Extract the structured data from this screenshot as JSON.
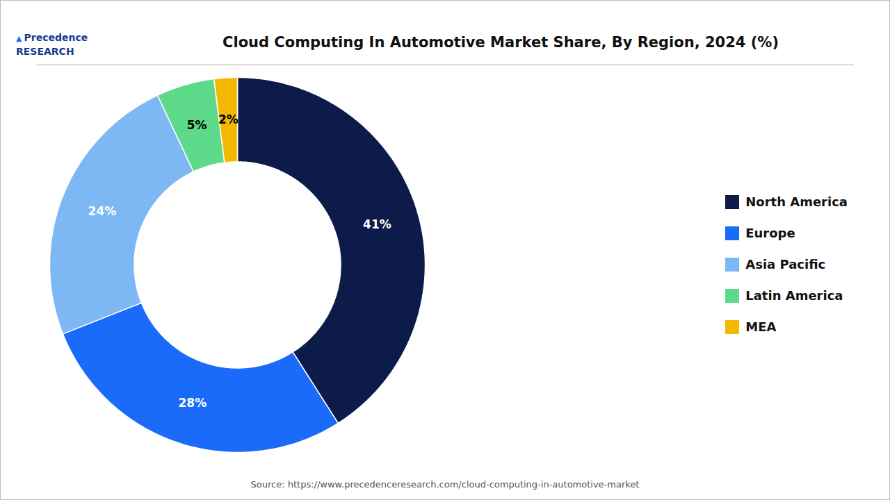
{
  "chart_data": {
    "type": "pie",
    "title": "Cloud Computing In Automotive Market Share, By Region, 2024 (%)",
    "categories": [
      "North America",
      "Europe",
      "Asia Pacific",
      "Latin America",
      "MEA"
    ],
    "values": [
      41,
      28,
      24,
      5,
      2
    ],
    "colors": [
      "#0d1b4b",
      "#1a6bfa",
      "#7db8f5",
      "#5dd98a",
      "#f5b800"
    ],
    "value_labels": [
      "41%",
      "28%",
      "24%",
      "5%",
      "2%"
    ],
    "data_labels": true,
    "legend": "right",
    "caption": "Source: https://www.precedenceresearch.com/cloud-computing-in-automotive-market",
    "annotations": [
      "▲",
      "Precedence",
      "RESEARCH"
    ]
  }
}
